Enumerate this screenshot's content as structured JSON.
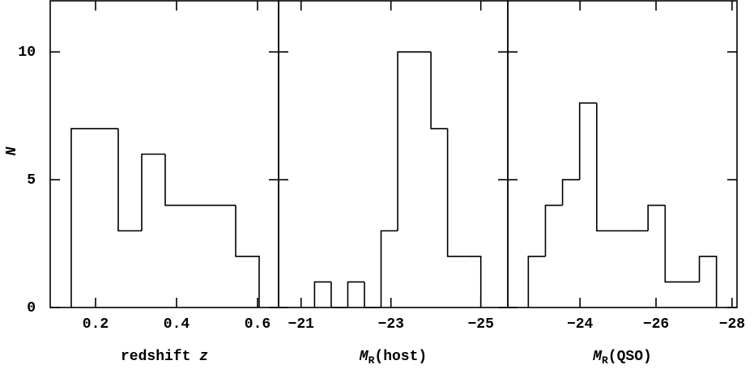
{
  "chart_data": [
    {
      "type": "histogram",
      "xlabel": {
        "main": "redshift  ",
        "italic": "z"
      },
      "ylabel": "N",
      "bins": [
        0.14,
        0.198,
        0.256,
        0.314,
        0.372,
        0.43,
        0.488,
        0.546,
        0.604
      ],
      "counts": [
        7,
        7,
        3,
        6,
        4,
        4,
        4,
        2
      ],
      "color": "#000000",
      "xlim": [
        0.088,
        0.652
      ],
      "xticks": [
        0.2,
        0.4,
        0.6
      ],
      "ylim": [
        0,
        12
      ],
      "yticks": [
        0,
        5,
        10
      ]
    },
    {
      "type": "histogram",
      "xlabel": {
        "italic": "M",
        "sub": "R",
        "rest": "(host)"
      },
      "bins": [
        -21.3,
        -21.67,
        -22.04,
        -22.41,
        -22.78,
        -23.15,
        -23.52,
        -23.89,
        -24.26,
        -24.63,
        -25.0
      ],
      "counts": [
        1,
        0,
        1,
        0,
        3,
        10,
        10,
        7,
        2,
        2
      ],
      "color": "#000000",
      "xlim": [
        -20.5,
        -25.6
      ],
      "xticks": [
        {
          "value": -21,
          "label": "−21"
        },
        {
          "value": -23,
          "label": "−23"
        },
        {
          "value": -25,
          "label": "−25"
        }
      ],
      "ylim": [
        0,
        12
      ]
    },
    {
      "type": "histogram",
      "xlabel": {
        "italic": "M",
        "sub": "R",
        "rest": "(QSO)"
      },
      "bins": [
        -22.64,
        -23.09,
        -23.54,
        -23.99,
        -24.44,
        -24.89,
        -25.34,
        -25.79,
        -26.24,
        -26.69,
        -27.14,
        -27.59
      ],
      "counts": [
        2,
        4,
        5,
        8,
        3,
        3,
        3,
        4,
        1,
        1,
        2
      ],
      "color": "#000000",
      "xlim": [
        -22.1,
        -28.13
      ],
      "xticks": [
        {
          "value": -24,
          "label": "−24"
        },
        {
          "value": -26,
          "label": "−26"
        },
        {
          "value": -28,
          "label": "−28"
        }
      ],
      "ylim": [
        0,
        12
      ]
    }
  ]
}
